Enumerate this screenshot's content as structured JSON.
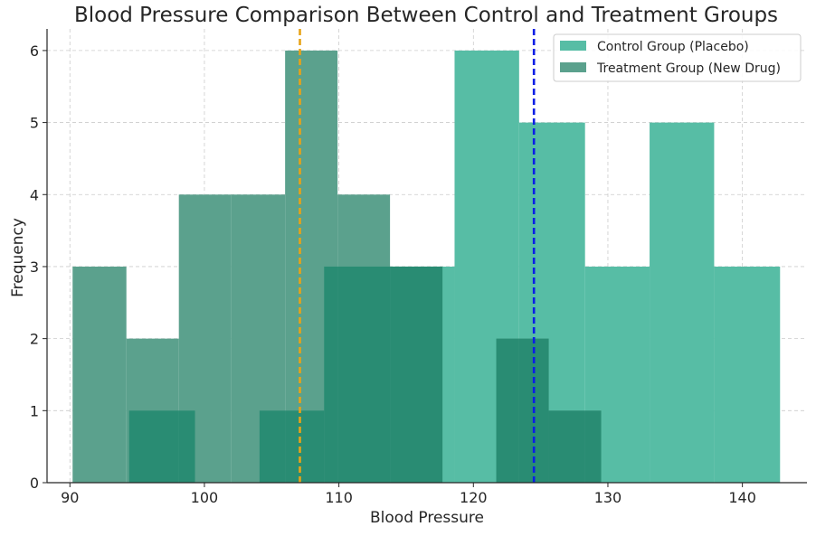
{
  "chart_data": {
    "type": "histogram",
    "title": "Blood Pressure Comparison Between Control and Treatment Groups",
    "xlabel": "Blood Pressure",
    "ylabel": "Frequency",
    "xlim": [
      88.3,
      144.8
    ],
    "ylim": [
      0,
      6.3
    ],
    "xticks": [
      90,
      100,
      110,
      120,
      130,
      140
    ],
    "yticks": [
      0,
      1,
      2,
      3,
      4,
      5,
      6
    ],
    "grid": true,
    "legend_position": "top-right",
    "series": [
      {
        "name": "Control Group (Placebo)",
        "color": "#57bda5",
        "bins": [
          {
            "start": 94.4,
            "end": 99.3,
            "count": 1
          },
          {
            "start": 104.1,
            "end": 108.9,
            "count": 1
          },
          {
            "start": 108.9,
            "end": 113.8,
            "count": 3
          },
          {
            "start": 113.8,
            "end": 118.6,
            "count": 3
          },
          {
            "start": 118.6,
            "end": 123.4,
            "count": 6
          },
          {
            "start": 123.4,
            "end": 128.3,
            "count": 5
          },
          {
            "start": 128.3,
            "end": 133.1,
            "count": 3
          },
          {
            "start": 133.1,
            "end": 137.9,
            "count": 5
          },
          {
            "start": 137.9,
            "end": 142.8,
            "count": 3
          }
        ]
      },
      {
        "name": "Treatment Group (New Drug)",
        "color": "#5ba18d",
        "bins": [
          {
            "start": 90.2,
            "end": 94.2,
            "count": 3
          },
          {
            "start": 94.2,
            "end": 98.1,
            "count": 2
          },
          {
            "start": 98.1,
            "end": 102.0,
            "count": 4
          },
          {
            "start": 102.0,
            "end": 106.0,
            "count": 4
          },
          {
            "start": 106.0,
            "end": 109.9,
            "count": 6
          },
          {
            "start": 109.9,
            "end": 113.8,
            "count": 4
          },
          {
            "start": 113.8,
            "end": 117.7,
            "count": 3
          },
          {
            "start": 117.7,
            "end": 121.7,
            "count": 0
          },
          {
            "start": 121.7,
            "end": 125.6,
            "count": 2
          },
          {
            "start": 125.6,
            "end": 129.5,
            "count": 1
          }
        ]
      }
    ],
    "overlap_color": "#298c73",
    "mean_lines": [
      {
        "x": 107.1,
        "color": "#e8a317",
        "style": "dashed"
      },
      {
        "x": 124.5,
        "color": "#0a1ee6",
        "style": "dashed"
      }
    ]
  }
}
